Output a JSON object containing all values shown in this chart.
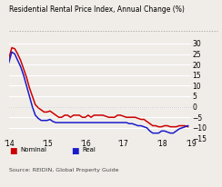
{
  "title": "Residential Rental Price Index, Annual Change (%)",
  "source": "Source: REIDIN, Global Property Guide",
  "legend": [
    "Nominal",
    "Real"
  ],
  "colors": [
    "#cc0000",
    "#1a1acc"
  ],
  "bg_color": "#f0ede8",
  "ylim": [
    -15,
    32
  ],
  "yticks": [
    -15,
    -10,
    -5,
    0,
    5,
    10,
    15,
    20,
    25,
    30
  ],
  "xtick_positions": [
    0,
    13,
    26,
    39,
    52,
    62
  ],
  "xtick_labels": [
    "'14",
    "'15",
    "'16",
    "'17",
    "'18",
    "'19"
  ],
  "nominal": [
    23,
    28,
    27.5,
    25,
    22,
    18,
    14,
    9,
    5,
    1,
    -0.5,
    -1.5,
    -2.5,
    -2.5,
    -2,
    -3,
    -4,
    -5,
    -5,
    -4,
    -4,
    -5,
    -4,
    -4,
    -4,
    -5,
    -5,
    -4,
    -5,
    -4,
    -4,
    -4,
    -4,
    -4.5,
    -5,
    -5,
    -5,
    -4,
    -4,
    -4.5,
    -5,
    -5,
    -5,
    -5,
    -5.5,
    -6,
    -6,
    -7,
    -8,
    -9,
    -9,
    -9.5,
    -9.5,
    -9,
    -9,
    -9.5,
    -9.5,
    -9.5,
    -9,
    -9,
    -9,
    -9.5
  ],
  "real": [
    21,
    26,
    25,
    22,
    19,
    15,
    10,
    5,
    0,
    -4,
    -5.5,
    -6.5,
    -6.5,
    -6.5,
    -6,
    -7,
    -7.5,
    -7.5,
    -7.5,
    -7.5,
    -7.5,
    -7.5,
    -7.5,
    -7.5,
    -7.5,
    -7.5,
    -7.5,
    -7.5,
    -7.5,
    -7.5,
    -7.5,
    -7.5,
    -7.5,
    -7.5,
    -7.5,
    -7.5,
    -7.5,
    -7.5,
    -7.5,
    -7.5,
    -7.5,
    -8,
    -8,
    -8.5,
    -9,
    -9,
    -9.5,
    -10,
    -11.5,
    -12.5,
    -12.5,
    -12.5,
    -11.5,
    -11.5,
    -12,
    -12.5,
    -12.5,
    -11.5,
    -10.5,
    -10,
    -9.5,
    -9
  ]
}
